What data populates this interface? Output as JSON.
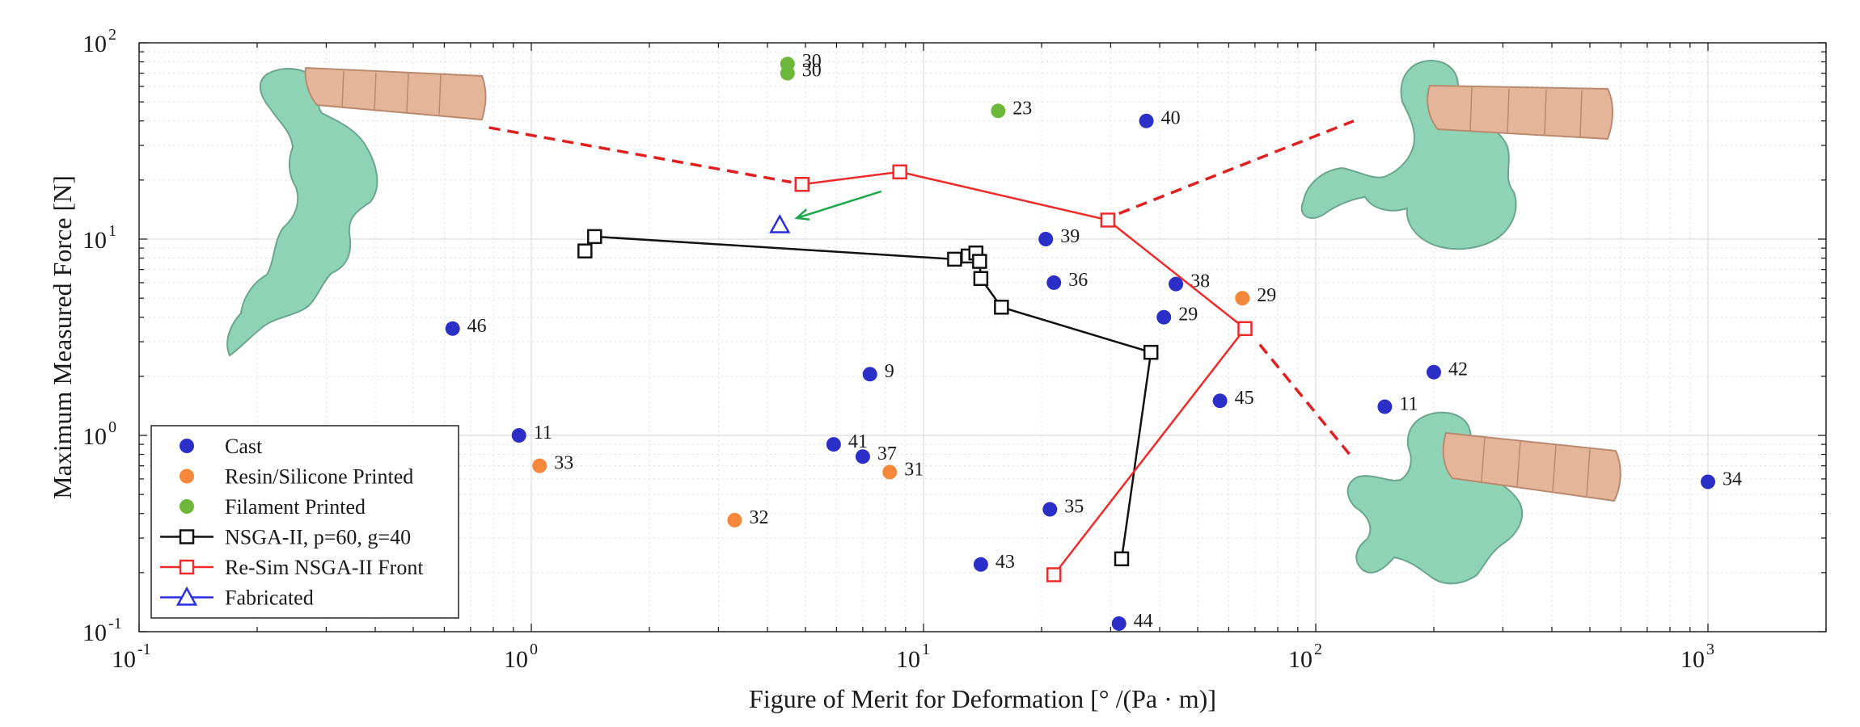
{
  "chart_data": {
    "type": "scatter",
    "title": "",
    "xlabel": "Figure of Merit for Deformation [° /(Pa · m)]",
    "ylabel": "Maximum Measured Force [N]",
    "xscale": "log",
    "yscale": "log",
    "xlim": [
      0.1,
      2000
    ],
    "ylim": [
      0.1,
      100
    ],
    "x_ticks": [
      {
        "base": "10",
        "exp": "-1"
      },
      {
        "base": "10",
        "exp": "0"
      },
      {
        "base": "10",
        "exp": "1"
      },
      {
        "base": "10",
        "exp": "2"
      },
      {
        "base": "10",
        "exp": "3"
      }
    ],
    "y_ticks": [
      {
        "base": "10",
        "exp": "-1"
      },
      {
        "base": "10",
        "exp": "0"
      },
      {
        "base": "10",
        "exp": "1"
      },
      {
        "base": "10",
        "exp": "2"
      }
    ],
    "grid": true,
    "legend_position": "bottom-left",
    "colors": {
      "cast": "#2b2fc8",
      "resin": "#f5873a",
      "filament": "#6db83a",
      "nsga": "#111111",
      "resim": "#ee2a2a",
      "fabricated": "#2b2fe0",
      "arrow": "#1aa84b",
      "dashed": "#e02020"
    },
    "series": [
      {
        "name": "Cast",
        "kind": "scatter",
        "color": "#2b2fc8",
        "points": [
          {
            "x": 0.63,
            "y": 3.5,
            "label": "46"
          },
          {
            "x": 0.93,
            "y": 1.0,
            "label": "11"
          },
          {
            "x": 7.3,
            "y": 2.05,
            "label": "9"
          },
          {
            "x": 5.9,
            "y": 0.9,
            "label": "41"
          },
          {
            "x": 7.0,
            "y": 0.78,
            "label": "37"
          },
          {
            "x": 20.5,
            "y": 10.0,
            "label": "39"
          },
          {
            "x": 21.5,
            "y": 6.0,
            "label": "36"
          },
          {
            "x": 37.0,
            "y": 40.0,
            "label": "40"
          },
          {
            "x": 44.0,
            "y": 5.9,
            "label": "38"
          },
          {
            "x": 41.0,
            "y": 4.0,
            "label": "29"
          },
          {
            "x": 57.0,
            "y": 1.5,
            "label": "45"
          },
          {
            "x": 21.0,
            "y": 0.42,
            "label": "35"
          },
          {
            "x": 14.0,
            "y": 0.22,
            "label": "43"
          },
          {
            "x": 31.5,
            "y": 0.11,
            "label": "44"
          },
          {
            "x": 200.0,
            "y": 2.1,
            "label": "42"
          },
          {
            "x": 150.0,
            "y": 1.4,
            "label": "11"
          },
          {
            "x": 1000.0,
            "y": 0.58,
            "label": "34"
          }
        ]
      },
      {
        "name": "Resin/Silicone Printed",
        "kind": "scatter",
        "color": "#f5873a",
        "points": [
          {
            "x": 1.05,
            "y": 0.7,
            "label": "33"
          },
          {
            "x": 8.2,
            "y": 0.65,
            "label": "31"
          },
          {
            "x": 3.3,
            "y": 0.37,
            "label": "32"
          },
          {
            "x": 65.0,
            "y": 5.0,
            "label": "29"
          }
        ]
      },
      {
        "name": "Filament Printed",
        "kind": "scatter",
        "color": "#6db83a",
        "points": [
          {
            "x": 4.5,
            "y": 78.0,
            "label": "30"
          },
          {
            "x": 4.5,
            "y": 70.0,
            "label": "30"
          },
          {
            "x": 15.5,
            "y": 45.0,
            "label": "23"
          }
        ]
      },
      {
        "name": "NSGA-II, p=60, g=40",
        "kind": "line-square",
        "color": "#111111",
        "points": [
          {
            "x": 1.37,
            "y": 8.7
          },
          {
            "x": 1.45,
            "y": 10.3
          },
          {
            "x": 12.0,
            "y": 7.9
          },
          {
            "x": 13.0,
            "y": 8.2
          },
          {
            "x": 13.6,
            "y": 8.5
          },
          {
            "x": 13.9,
            "y": 7.7
          },
          {
            "x": 14.0,
            "y": 6.3
          },
          {
            "x": 15.8,
            "y": 4.5
          },
          {
            "x": 38.0,
            "y": 2.65
          },
          {
            "x": 32.0,
            "y": 0.235
          }
        ]
      },
      {
        "name": "Re-Sim NSGA-II Front",
        "kind": "line-square",
        "color": "#ee2a2a",
        "points": [
          {
            "x": 4.9,
            "y": 19.0
          },
          {
            "x": 8.7,
            "y": 22.0
          },
          {
            "x": 29.5,
            "y": 12.5
          },
          {
            "x": 66.0,
            "y": 3.5
          },
          {
            "x": 21.5,
            "y": 0.195
          }
        ]
      },
      {
        "name": "Fabricated",
        "kind": "triangle",
        "color": "#2b2fe0",
        "points": [
          {
            "x": 4.3,
            "y": 11.8
          }
        ]
      }
    ],
    "annotations": {
      "dashed_lines": [
        {
          "from": {
            "x": 0.78,
            "y": 37.0
          },
          "to": {
            "x": 4.6,
            "y": 19.5
          }
        },
        {
          "from": {
            "x": 31.5,
            "y": 13.5
          },
          "to": {
            "x": 125.0,
            "y": 40.0
          }
        },
        {
          "from": {
            "x": 72.0,
            "y": 2.9
          },
          "to": {
            "x": 122.0,
            "y": 0.8
          }
        }
      ],
      "arrow": {
        "from": {
          "x": 7.8,
          "y": 17.5
        },
        "to": {
          "x": 4.75,
          "y": 12.8
        }
      }
    }
  }
}
